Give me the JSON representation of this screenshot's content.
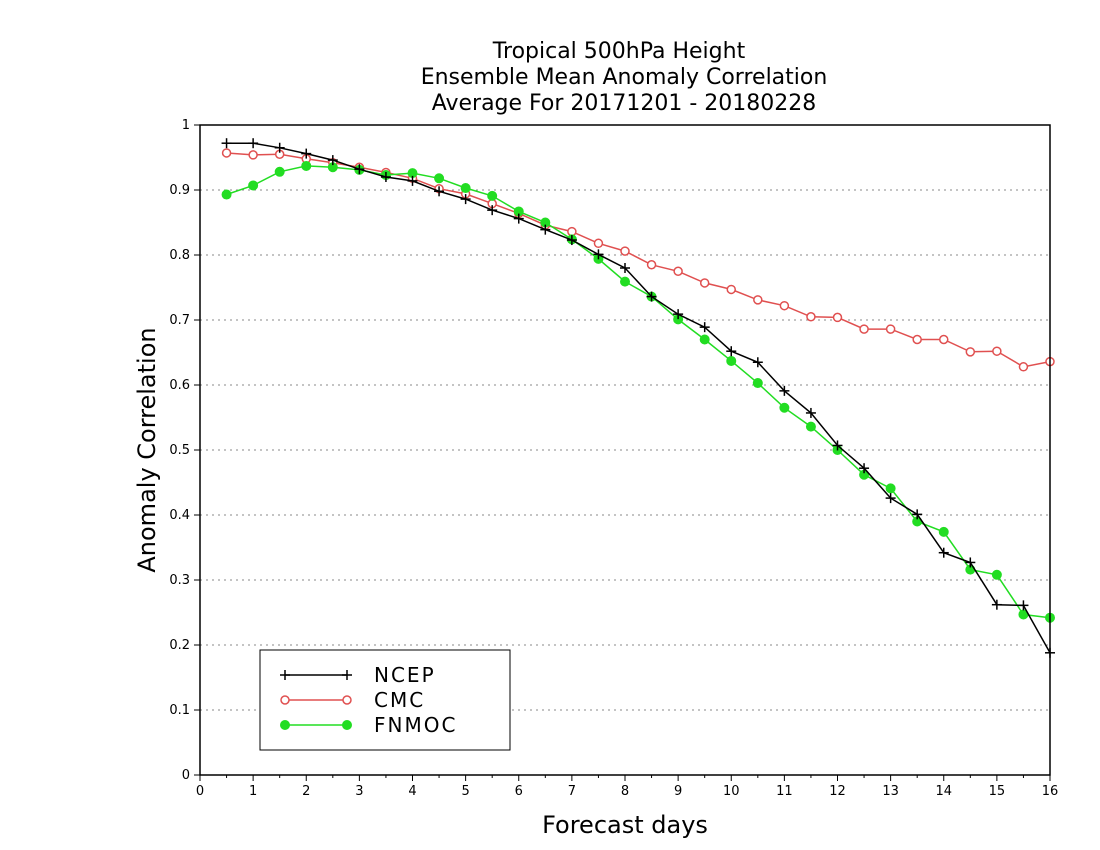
{
  "chart_data": {
    "type": "line",
    "title": [
      "Tropical 500hPa Height",
      "Ensemble Mean Anomaly Correlation",
      "Average For 20171201 - 20180228"
    ],
    "xlabel": "Forecast days",
    "ylabel": "Anomaly Correlation",
    "xlim": [
      0,
      16
    ],
    "ylim": [
      0,
      1
    ],
    "xticks": [
      "0",
      "1",
      "2",
      "3",
      "4",
      "5",
      "6",
      "7",
      "8",
      "9",
      "10",
      "11",
      "12",
      "13",
      "14",
      "15",
      "16"
    ],
    "yticks": [
      "0",
      "0.1",
      "0.2",
      "0.3",
      "0.4",
      "0.5",
      "0.6",
      "0.7",
      "0.8",
      "0.9",
      "1"
    ],
    "grid": "dotted horizontal",
    "legend_position": "bottom-left",
    "x": [
      0.5,
      1,
      1.5,
      2,
      2.5,
      3,
      3.5,
      4,
      4.5,
      5,
      5.5,
      6,
      6.5,
      7,
      7.5,
      8,
      8.5,
      9,
      9.5,
      10,
      10.5,
      11,
      11.5,
      12,
      12.5,
      13,
      13.5,
      14,
      14.5,
      15,
      15.5,
      16
    ],
    "series": [
      {
        "name": "NCEP",
        "color": "#000000",
        "marker": "plus",
        "values": [
          0.972,
          0.972,
          0.965,
          0.956,
          0.946,
          0.932,
          0.92,
          0.914,
          0.898,
          0.886,
          0.869,
          0.856,
          0.839,
          0.823,
          0.801,
          0.78,
          0.736,
          0.709,
          0.689,
          0.652,
          0.635,
          0.591,
          0.557,
          0.507,
          0.472,
          0.426,
          0.401,
          0.342,
          0.327,
          0.262,
          0.261,
          0.188
        ]
      },
      {
        "name": "CMC",
        "color": "#e05050",
        "marker": "open-circle",
        "values": [
          0.957,
          0.954,
          0.955,
          0.948,
          0.942,
          0.935,
          0.927,
          0.918,
          0.902,
          0.894,
          0.879,
          0.864,
          0.846,
          0.836,
          0.818,
          0.806,
          0.785,
          0.775,
          0.757,
          0.747,
          0.731,
          0.722,
          0.705,
          0.704,
          0.686,
          0.686,
          0.67,
          0.67,
          0.651,
          0.652,
          0.628,
          0.636
        ]
      },
      {
        "name": "FNMOC",
        "color": "#22dd22",
        "marker": "filled-circle",
        "values": [
          0.893,
          0.907,
          0.928,
          0.937,
          0.935,
          0.931,
          0.923,
          0.926,
          0.918,
          0.903,
          0.891,
          0.867,
          0.85,
          0.824,
          0.794,
          0.759,
          0.736,
          0.701,
          0.67,
          0.637,
          0.603,
          0.565,
          0.536,
          0.5,
          0.462,
          0.441,
          0.39,
          0.374,
          0.316,
          0.308,
          0.247,
          0.242
        ]
      }
    ]
  }
}
